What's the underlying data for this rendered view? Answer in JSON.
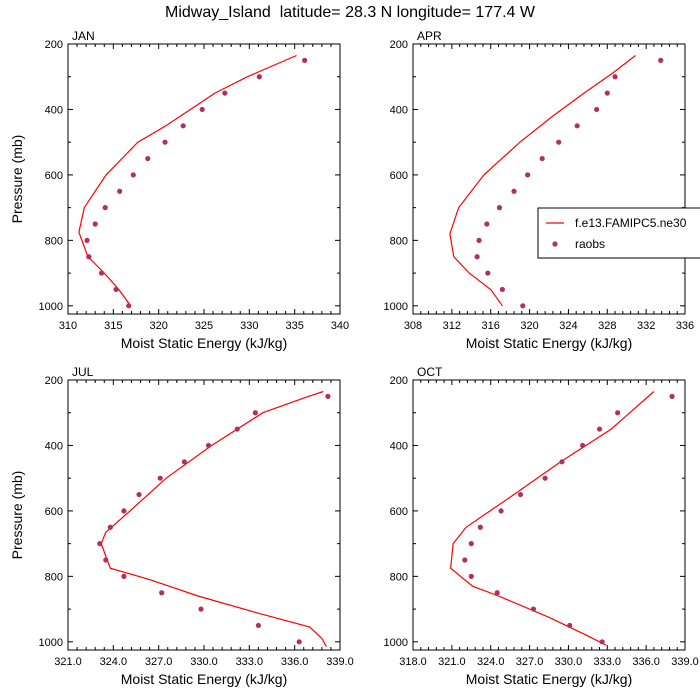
{
  "figure": {
    "title": "Midway_Island  latitude= 28.3 N longitude= 177.4 W"
  },
  "colors": {
    "model": "#ff0000",
    "obs": "#b03060"
  },
  "chart_data": [
    {
      "type": "scatter",
      "panel": "JAN",
      "xlabel": "Moist Static Energy (kJ/kg)",
      "ylabel": "Pressure (mb)",
      "xlim": [
        310,
        340
      ],
      "ylim": [
        1025,
        200
      ],
      "xticks": [
        "310",
        "315",
        "320",
        "325",
        "330",
        "335",
        "340"
      ],
      "xtick_values": [
        310,
        315,
        320,
        325,
        330,
        335,
        340
      ],
      "yticks": [
        "200",
        "400",
        "600",
        "800",
        "1000"
      ],
      "ytick_values": [
        200,
        400,
        600,
        800,
        1000
      ],
      "series": [
        {
          "name": "f.e13.FAMIPC5.ne30",
          "kind": "line",
          "x": [
            316.9,
            315.6,
            314.0,
            312.2,
            311.2,
            311.8,
            314.2,
            317.7,
            320.8,
            323.5,
            326.2,
            329.8,
            335.2
          ],
          "y": [
            1000,
            950,
            900,
            850,
            775,
            700,
            600,
            500,
            450,
            400,
            350,
            300,
            235
          ]
        },
        {
          "name": "raobs",
          "kind": "scatter",
          "x": [
            316.7,
            315.3,
            313.7,
            312.3,
            312.1,
            313.0,
            314.1,
            315.7,
            317.2,
            318.8,
            320.7,
            322.7,
            324.8,
            327.3,
            331.1,
            336.1
          ],
          "y": [
            1000,
            950,
            900,
            850,
            800,
            750,
            700,
            650,
            600,
            550,
            500,
            450,
            400,
            350,
            300,
            250
          ]
        }
      ]
    },
    {
      "type": "scatter",
      "panel": "APR",
      "xlabel": "Moist Static Energy (kJ/kg)",
      "ylabel": "",
      "xlim": [
        308,
        336
      ],
      "ylim": [
        1025,
        200
      ],
      "xticks": [
        "308",
        "312",
        "316",
        "320",
        "324",
        "328",
        "332",
        "336"
      ],
      "xtick_values": [
        308,
        312,
        316,
        320,
        324,
        328,
        332,
        336
      ],
      "yticks": [
        "200",
        "400",
        "600",
        "800",
        "1000"
      ],
      "ytick_values": [
        200,
        400,
        600,
        800,
        1000
      ],
      "legend": {
        "position": "right",
        "entries": [
          "f.e13.FAMIPC5.ne30",
          "raobs"
        ]
      },
      "series": [
        {
          "name": "f.e13.FAMIPC5.ne30",
          "kind": "line",
          "x": [
            317.2,
            316.0,
            313.8,
            312.2,
            311.8,
            312.7,
            315.3,
            319.0,
            322.4,
            325.6,
            328.5,
            330.9
          ],
          "y": [
            1000,
            950,
            900,
            850,
            780,
            700,
            600,
            500,
            420,
            350,
            290,
            235
          ]
        },
        {
          "name": "raobs",
          "kind": "scatter",
          "x": [
            319.3,
            317.2,
            315.7,
            314.6,
            314.8,
            315.6,
            316.9,
            318.4,
            319.8,
            321.3,
            323.0,
            324.9,
            326.9,
            328.0,
            328.8,
            333.5
          ],
          "y": [
            1000,
            950,
            900,
            850,
            800,
            750,
            700,
            650,
            600,
            550,
            500,
            450,
            400,
            350,
            300,
            250
          ]
        }
      ]
    },
    {
      "type": "scatter",
      "panel": "JUL",
      "xlabel": "Moist Static Energy (kJ/kg)",
      "ylabel": "Pressure (mb)",
      "xlim": [
        321,
        339
      ],
      "ylim": [
        1025,
        200
      ],
      "xticks": [
        "321.0",
        "324.0",
        "327.0",
        "330.0",
        "333.0",
        "336.0",
        "339.0"
      ],
      "xtick_values": [
        321,
        324,
        327,
        330,
        333,
        336,
        339
      ],
      "yticks": [
        "200",
        "400",
        "600",
        "800",
        "1000"
      ],
      "ytick_values": [
        200,
        400,
        600,
        800,
        1000
      ],
      "series": [
        {
          "name": "f.e13.FAMIPC5.ne30",
          "kind": "line",
          "x": [
            338.1,
            337.8,
            337.0,
            333.4,
            329.6,
            326.4,
            323.8,
            323.2,
            323.5,
            325.1,
            327.5,
            330.5,
            333.9,
            336.9,
            337.9
          ],
          "y": [
            1015,
            990,
            955,
            910,
            860,
            810,
            775,
            700,
            665,
            600,
            500,
            400,
            300,
            250,
            235
          ]
        },
        {
          "name": "raobs",
          "kind": "scatter",
          "x": [
            336.3,
            333.6,
            329.8,
            327.2,
            324.7,
            323.5,
            323.1,
            323.8,
            324.7,
            325.7,
            327.1,
            328.7,
            330.3,
            332.2,
            333.4,
            338.2
          ],
          "y": [
            1000,
            950,
            900,
            850,
            800,
            750,
            700,
            650,
            600,
            550,
            500,
            450,
            400,
            350,
            300,
            250
          ]
        }
      ]
    },
    {
      "type": "scatter",
      "panel": "OCT",
      "xlabel": "Moist Static Energy (kJ/kg)",
      "ylabel": "",
      "xlim": [
        318,
        339
      ],
      "ylim": [
        1025,
        200
      ],
      "xticks": [
        "318.0",
        "321.0",
        "324.0",
        "327.0",
        "330.0",
        "333.0",
        "336.0",
        "339.0"
      ],
      "xtick_values": [
        318,
        321,
        324,
        327,
        330,
        333,
        336,
        339
      ],
      "yticks": [
        "200",
        "400",
        "600",
        "800",
        "1000"
      ],
      "ytick_values": [
        200,
        400,
        600,
        800,
        1000
      ],
      "series": [
        {
          "name": "f.e13.FAMIPC5.ne30",
          "kind": "line",
          "x": [
            332.9,
            331.4,
            328.5,
            324.6,
            322.6,
            320.9,
            321.1,
            322.1,
            325.8,
            329.4,
            333.3,
            336.6
          ],
          "y": [
            1010,
            980,
            925,
            860,
            830,
            775,
            700,
            650,
            550,
            450,
            350,
            235
          ]
        },
        {
          "name": "raobs",
          "kind": "scatter",
          "x": [
            332.6,
            330.1,
            327.3,
            324.5,
            322.5,
            322.0,
            322.5,
            323.2,
            324.8,
            326.3,
            328.2,
            329.5,
            331.1,
            332.4,
            333.8,
            338.0
          ],
          "y": [
            1000,
            950,
            900,
            850,
            800,
            750,
            700,
            650,
            600,
            550,
            500,
            450,
            400,
            350,
            300,
            250
          ]
        }
      ]
    }
  ]
}
